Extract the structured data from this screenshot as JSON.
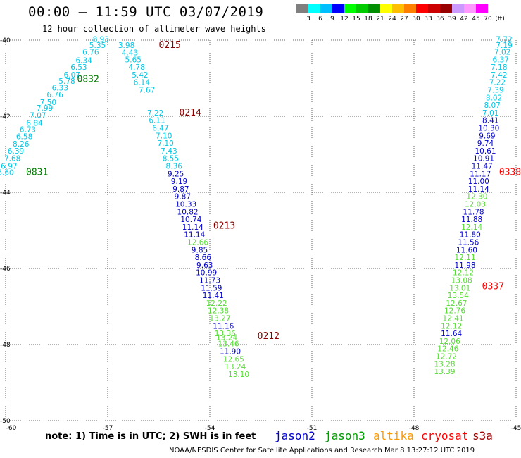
{
  "header": {
    "title": "00:00 – 11:59 UTC 03/07/2019",
    "subtitle": "12 hour collection of altimeter wave heights"
  },
  "colorbar": {
    "labels": [
      "3",
      "6",
      "9",
      "12",
      "15",
      "18",
      "21",
      "24",
      "27",
      "30",
      "33",
      "36",
      "39",
      "42",
      "45",
      "70",
      "(ft)"
    ],
    "colors": [
      "#7f7f7f",
      "#00ffff",
      "#00bfff",
      "#0000ff",
      "#00ff00",
      "#00cc00",
      "#008f00",
      "#ffff00",
      "#ffbf00",
      "#ff7f00",
      "#ff0000",
      "#cc0000",
      "#990000",
      "#cc99ff",
      "#ff99ff",
      "#ff00ff"
    ]
  },
  "footer": {
    "note": "note:  1) Time is in UTC;  2) SWH is in feet",
    "credit": "NOAA/NESDIS Center for Satellite Applications and Research    Mar  8 13:27:12 UTC 2019"
  },
  "legend": [
    {
      "name": "jason2",
      "color": "#0000cc"
    },
    {
      "name": "jason3",
      "color": "#009900"
    },
    {
      "name": "altika",
      "color": "#ff9900"
    },
    {
      "name": "cryosat",
      "color": "#ff0000"
    },
    {
      "name": "s3a",
      "color": "#990000"
    }
  ],
  "map": {
    "lon_range": [
      -60,
      -45
    ],
    "lat_range": [
      -50,
      -40
    ],
    "lon_ticks": [
      "-60",
      "-57",
      "-54",
      "-51",
      "-48",
      "-45"
    ],
    "lat_ticks": [
      "-40",
      "-42",
      "-44",
      "-46",
      "-48",
      "-50"
    ],
    "grid": true
  },
  "colors": {
    "cyan": "#00c8e6",
    "blue": "#0000cc",
    "green": "#55dd33",
    "darkgreen": "#009900",
    "darkred": "#880000",
    "red": "#ff0000"
  },
  "chart_data": {
    "type": "scatter",
    "title": "00:00 – 11:59 UTC 03/07/2019",
    "subtitle": "12 hour collection of altimeter wave heights",
    "xlabel": "",
    "ylabel": "",
    "xlim": [
      -60,
      -45
    ],
    "ylim": [
      -50,
      -40
    ],
    "passes": [
      {
        "time_label": "0832",
        "satellite": "jason3",
        "label_at": {
          "lon": -57.9,
          "lat": -41.1
        },
        "points": [
          {
            "lon": -57.2,
            "lat": -40.05,
            "v": "8.93",
            "c": "cyan"
          },
          {
            "lon": -57.3,
            "lat": -40.2,
            "v": "5.35",
            "c": "cyan"
          },
          {
            "lon": -57.5,
            "lat": -40.38,
            "v": "6.76",
            "c": "cyan"
          },
          {
            "lon": -57.7,
            "lat": -40.6,
            "v": "6.34",
            "c": "cyan"
          },
          {
            "lon": -57.85,
            "lat": -40.78,
            "v": "6.53",
            "c": "cyan"
          },
          {
            "lon": -58.05,
            "lat": -40.98,
            "v": "6.07",
            "c": "cyan"
          },
          {
            "lon": -58.2,
            "lat": -41.15,
            "v": "5.78",
            "c": "cyan"
          },
          {
            "lon": -58.4,
            "lat": -41.32,
            "v": "6.33",
            "c": "cyan"
          },
          {
            "lon": -58.55,
            "lat": -41.5,
            "v": "6.76",
            "c": "cyan"
          },
          {
            "lon": -58.75,
            "lat": -41.7,
            "v": "7.50",
            "c": "cyan"
          },
          {
            "lon": -58.85,
            "lat": -41.85,
            "v": "7.99",
            "c": "cyan"
          },
          {
            "lon": -59.05,
            "lat": -42.05,
            "v": "7.07",
            "c": "cyan"
          },
          {
            "lon": -59.15,
            "lat": -42.25,
            "v": "6.84",
            "c": "cyan"
          },
          {
            "lon": -59.35,
            "lat": -42.42,
            "v": "6.73",
            "c": "cyan"
          },
          {
            "lon": -59.45,
            "lat": -42.6,
            "v": "6.58",
            "c": "cyan"
          },
          {
            "lon": -59.55,
            "lat": -42.8,
            "v": "8.26",
            "c": "cyan"
          },
          {
            "lon": -59.7,
            "lat": -42.98,
            "v": "6.39",
            "c": "cyan"
          },
          {
            "lon": -59.8,
            "lat": -43.18,
            "v": "7.68",
            "c": "cyan"
          },
          {
            "lon": -59.9,
            "lat": -43.38,
            "v": "6.97",
            "c": "cyan"
          },
          {
            "lon": -60.0,
            "lat": -43.55,
            "v": "6.60",
            "c": "cyan"
          }
        ]
      },
      {
        "time_label": "0831",
        "satellite": "jason3",
        "label_at": {
          "lon": -59.4,
          "lat": -43.55
        },
        "points": []
      },
      {
        "time_label": "0215",
        "satellite": "s3a",
        "label_at": {
          "lon": -55.5,
          "lat": -40.2
        },
        "points": [
          {
            "lon": -56.45,
            "lat": -40.2,
            "v": "3.98",
            "c": "cyan"
          },
          {
            "lon": -56.35,
            "lat": -40.4,
            "v": "4.43",
            "c": "cyan"
          },
          {
            "lon": -56.25,
            "lat": -40.58,
            "v": "5.65",
            "c": "cyan"
          },
          {
            "lon": -56.15,
            "lat": -40.78,
            "v": "4.78",
            "c": "cyan"
          },
          {
            "lon": -56.05,
            "lat": -40.98,
            "v": "5.42",
            "c": "cyan"
          },
          {
            "lon": -56.0,
            "lat": -41.18,
            "v": "6.14",
            "c": "cyan"
          },
          {
            "lon": -55.85,
            "lat": -41.38,
            "v": "7.67",
            "c": "cyan"
          }
        ]
      },
      {
        "time_label": "0214",
        "satellite": "s3a",
        "label_at": {
          "lon": -54.9,
          "lat": -41.98
        },
        "points": [
          {
            "lon": -55.6,
            "lat": -41.98,
            "v": "7.22",
            "c": "cyan"
          },
          {
            "lon": -55.55,
            "lat": -42.18,
            "v": "6.11",
            "c": "cyan"
          },
          {
            "lon": -55.45,
            "lat": -42.38,
            "v": "6.47",
            "c": "cyan"
          },
          {
            "lon": -55.35,
            "lat": -42.58,
            "v": "7.10",
            "c": "cyan"
          },
          {
            "lon": -55.3,
            "lat": -42.78,
            "v": "7.10",
            "c": "cyan"
          },
          {
            "lon": -55.2,
            "lat": -42.98,
            "v": "7.43",
            "c": "cyan"
          },
          {
            "lon": -55.15,
            "lat": -43.18,
            "v": "8.55",
            "c": "cyan"
          },
          {
            "lon": -55.05,
            "lat": -43.38,
            "v": "8.36",
            "c": "cyan"
          },
          {
            "lon": -55.0,
            "lat": -43.58,
            "v": "9.25",
            "c": "blue"
          },
          {
            "lon": -54.9,
            "lat": -43.78,
            "v": "9.19",
            "c": "blue"
          },
          {
            "lon": -54.85,
            "lat": -43.98,
            "v": "9.87",
            "c": "blue"
          },
          {
            "lon": -54.8,
            "lat": -44.18,
            "v": "9.87",
            "c": "blue"
          },
          {
            "lon": -54.7,
            "lat": -44.38,
            "v": "10.33",
            "c": "blue"
          },
          {
            "lon": -54.65,
            "lat": -44.58,
            "v": "10.82",
            "c": "blue"
          },
          {
            "lon": -54.55,
            "lat": -44.78,
            "v": "10.74",
            "c": "blue"
          },
          {
            "lon": -54.5,
            "lat": -44.98,
            "v": "11.14",
            "c": "blue"
          },
          {
            "lon": -54.45,
            "lat": -45.18,
            "v": "11.14",
            "c": "blue"
          }
        ]
      },
      {
        "time_label": "0213",
        "satellite": "s3a",
        "label_at": {
          "lon": -53.9,
          "lat": -44.95
        },
        "points": [
          {
            "lon": -54.35,
            "lat": -45.38,
            "v": "12.66",
            "c": "green"
          },
          {
            "lon": -54.3,
            "lat": -45.58,
            "v": "9.85",
            "c": "blue"
          },
          {
            "lon": -54.2,
            "lat": -45.78,
            "v": "8.66",
            "c": "blue"
          },
          {
            "lon": -54.15,
            "lat": -45.98,
            "v": "9.63",
            "c": "blue"
          },
          {
            "lon": -54.1,
            "lat": -46.18,
            "v": "10.99",
            "c": "blue"
          },
          {
            "lon": -54.0,
            "lat": -46.38,
            "v": "11.73",
            "c": "blue"
          },
          {
            "lon": -53.95,
            "lat": -46.58,
            "v": "11.59",
            "c": "blue"
          },
          {
            "lon": -53.9,
            "lat": -46.78,
            "v": "11.41",
            "c": "blue"
          },
          {
            "lon": -53.8,
            "lat": -46.98,
            "v": "12.22",
            "c": "green"
          },
          {
            "lon": -53.75,
            "lat": -47.18,
            "v": "12.38",
            "c": "green"
          },
          {
            "lon": -53.7,
            "lat": -47.38,
            "v": "13.27",
            "c": "green"
          },
          {
            "lon": -53.6,
            "lat": -47.58,
            "v": "11.16",
            "c": "blue"
          },
          {
            "lon": -53.55,
            "lat": -47.78,
            "v": "13.36",
            "c": "green"
          },
          {
            "lon": -53.5,
            "lat": -47.88,
            "v": "13.24",
            "c": "green"
          },
          {
            "lon": -53.45,
            "lat": -48.05,
            "v": "13.46",
            "c": "green"
          },
          {
            "lon": -53.4,
            "lat": -48.25,
            "v": "11.90",
            "c": "blue"
          },
          {
            "lon": -53.3,
            "lat": -48.45,
            "v": "12.65",
            "c": "green"
          },
          {
            "lon": -53.25,
            "lat": -48.65,
            "v": "13.24",
            "c": "green"
          },
          {
            "lon": -53.15,
            "lat": -48.85,
            "v": "13.10",
            "c": "green"
          }
        ]
      },
      {
        "time_label": "0212",
        "satellite": "s3a",
        "label_at": {
          "lon": -52.6,
          "lat": -47.85
        },
        "points": []
      },
      {
        "time_label": "0338",
        "satellite": "cryosat",
        "label_at": {
          "lon": -45.5,
          "lat": -43.55
        },
        "points": [
          {
            "lon": -45.35,
            "lat": -40.05,
            "v": "7.72",
            "c": "cyan"
          },
          {
            "lon": -45.35,
            "lat": -40.2,
            "v": "7.19",
            "c": "cyan"
          },
          {
            "lon": -45.4,
            "lat": -40.38,
            "v": "7.02",
            "c": "cyan"
          },
          {
            "lon": -45.45,
            "lat": -40.58,
            "v": "6.37",
            "c": "cyan"
          },
          {
            "lon": -45.5,
            "lat": -40.78,
            "v": "7.18",
            "c": "cyan"
          },
          {
            "lon": -45.5,
            "lat": -40.98,
            "v": "7.42",
            "c": "cyan"
          },
          {
            "lon": -45.55,
            "lat": -41.18,
            "v": "7.22",
            "c": "cyan"
          },
          {
            "lon": -45.6,
            "lat": -41.38,
            "v": "7.39",
            "c": "cyan"
          },
          {
            "lon": -45.65,
            "lat": -41.58,
            "v": "8.02",
            "c": "cyan"
          },
          {
            "lon": -45.7,
            "lat": -41.78,
            "v": "8.07",
            "c": "cyan"
          },
          {
            "lon": -45.75,
            "lat": -41.98,
            "v": "7.01",
            "c": "cyan"
          },
          {
            "lon": -45.75,
            "lat": -42.18,
            "v": "8.41",
            "c": "blue"
          },
          {
            "lon": -45.8,
            "lat": -42.38,
            "v": "10.30",
            "c": "blue"
          },
          {
            "lon": -45.85,
            "lat": -42.58,
            "v": "9.69",
            "c": "blue"
          },
          {
            "lon": -45.9,
            "lat": -42.78,
            "v": "9.74",
            "c": "blue"
          },
          {
            "lon": -45.9,
            "lat": -42.98,
            "v": "10.61",
            "c": "blue"
          },
          {
            "lon": -45.95,
            "lat": -43.18,
            "v": "10.91",
            "c": "blue"
          },
          {
            "lon": -46.0,
            "lat": -43.38,
            "v": "11.47",
            "c": "blue"
          },
          {
            "lon": -46.05,
            "lat": -43.58,
            "v": "11.17",
            "c": "blue"
          },
          {
            "lon": -46.1,
            "lat": -43.78,
            "v": "11.00",
            "c": "blue"
          },
          {
            "lon": -46.1,
            "lat": -43.98,
            "v": "11.14",
            "c": "blue"
          },
          {
            "lon": -46.15,
            "lat": -44.18,
            "v": "12.30",
            "c": "green"
          },
          {
            "lon": -46.2,
            "lat": -44.38,
            "v": "12.03",
            "c": "green"
          },
          {
            "lon": -46.25,
            "lat": -44.58,
            "v": "11.78",
            "c": "blue"
          },
          {
            "lon": -46.3,
            "lat": -44.78,
            "v": "11.88",
            "c": "blue"
          },
          {
            "lon": -46.3,
            "lat": -44.98,
            "v": "12.14",
            "c": "green"
          },
          {
            "lon": -46.35,
            "lat": -45.18,
            "v": "11.80",
            "c": "blue"
          },
          {
            "lon": -46.4,
            "lat": -45.38,
            "v": "11.56",
            "c": "blue"
          },
          {
            "lon": -46.45,
            "lat": -45.58,
            "v": "11.60",
            "c": "blue"
          },
          {
            "lon": -46.5,
            "lat": -45.78,
            "v": "12.11",
            "c": "green"
          },
          {
            "lon": -46.5,
            "lat": -45.98,
            "v": "11.98",
            "c": "blue"
          },
          {
            "lon": -46.55,
            "lat": -46.18,
            "v": "12.12",
            "c": "green"
          }
        ]
      },
      {
        "time_label": "0337",
        "satellite": "cryosat",
        "label_at": {
          "lon": -46.0,
          "lat": -46.55
        },
        "points": [
          {
            "lon": -46.6,
            "lat": -46.38,
            "v": "13.08",
            "c": "green"
          },
          {
            "lon": -46.65,
            "lat": -46.58,
            "v": "13.01",
            "c": "green"
          },
          {
            "lon": -46.7,
            "lat": -46.78,
            "v": "13.54",
            "c": "green"
          },
          {
            "lon": -46.75,
            "lat": -46.98,
            "v": "12.67",
            "c": "green"
          },
          {
            "lon": -46.8,
            "lat": -47.18,
            "v": "12.76",
            "c": "green"
          },
          {
            "lon": -46.85,
            "lat": -47.38,
            "v": "12.41",
            "c": "green"
          },
          {
            "lon": -46.9,
            "lat": -47.58,
            "v": "12.12",
            "c": "green"
          },
          {
            "lon": -46.9,
            "lat": -47.78,
            "v": "11.64",
            "c": "blue"
          },
          {
            "lon": -46.95,
            "lat": -47.98,
            "v": "12.06",
            "c": "green"
          },
          {
            "lon": -47.0,
            "lat": -48.18,
            "v": "12.46",
            "c": "green"
          },
          {
            "lon": -47.05,
            "lat": -48.38,
            "v": "12.72",
            "c": "green"
          },
          {
            "lon": -47.1,
            "lat": -48.58,
            "v": "13.28",
            "c": "green"
          },
          {
            "lon": -47.1,
            "lat": -48.78,
            "v": "13.39",
            "c": "green"
          }
        ]
      }
    ]
  }
}
